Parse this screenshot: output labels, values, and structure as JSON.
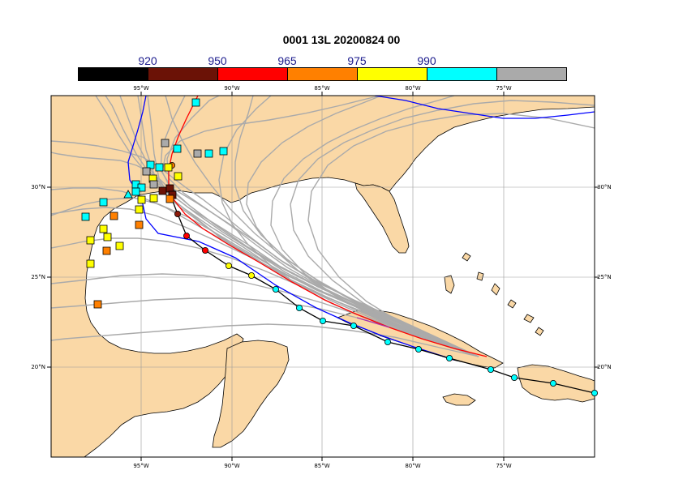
{
  "title": "0001 13L 20200824 00",
  "legend": {
    "colors": [
      "#000000",
      "#6b1206",
      "#ff0000",
      "#ff8000",
      "#ffff00",
      "#00ffff",
      "#aaaaaa"
    ],
    "labels": [
      "920",
      "950",
      "965",
      "975",
      "990"
    ]
  },
  "axes": {
    "x_ticks": [
      "95°W",
      "90°W",
      "85°W",
      "80°W",
      "75°W"
    ],
    "y_ticks": [
      "30°N",
      "25°N",
      "20°N"
    ]
  },
  "colors": {
    "land": "#fad8a6",
    "sea": "#ffffff",
    "ensemble": "#aaaaaa",
    "observed": "#000000",
    "blue_track": "#0000ff",
    "red_track": "#ff0000"
  }
}
